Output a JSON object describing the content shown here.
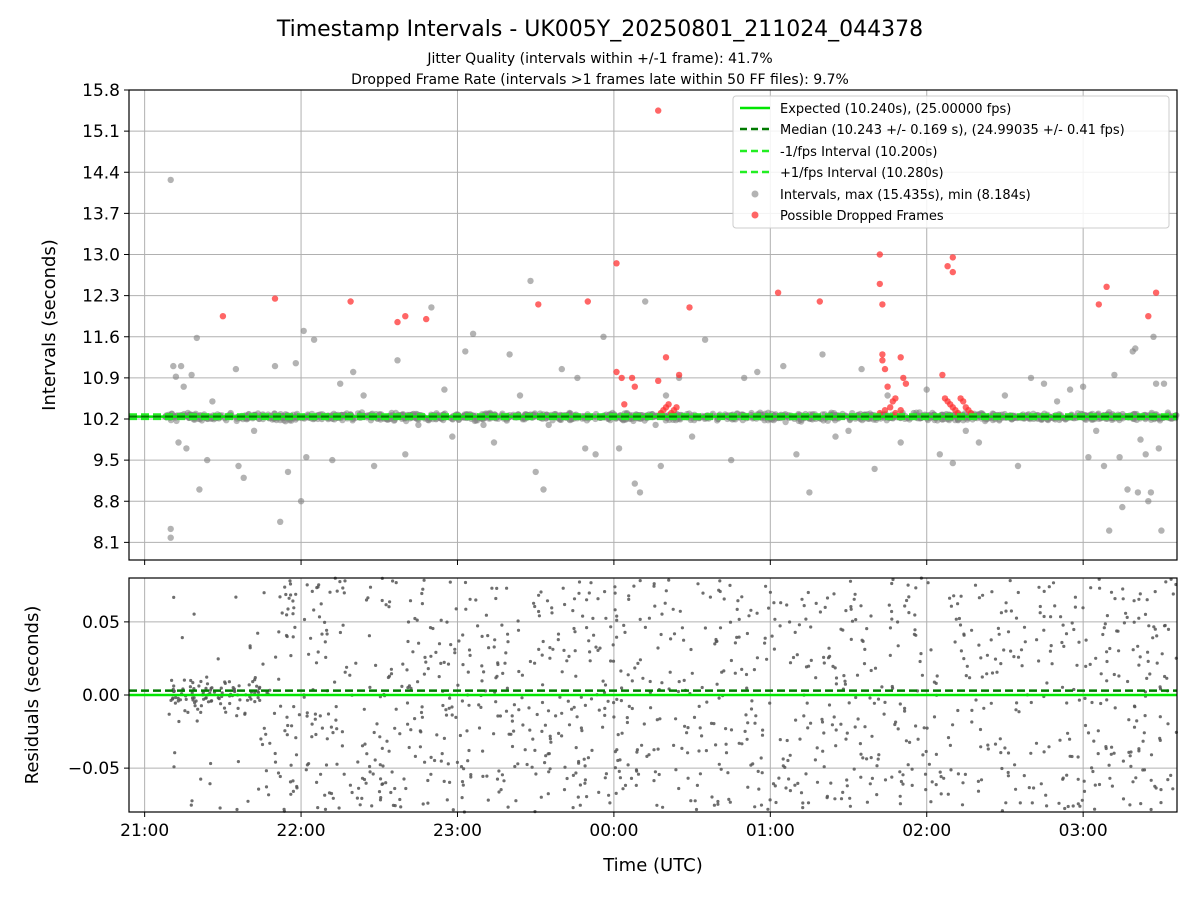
{
  "figure": {
    "title": "Timestamp Intervals - UK005Y_20250801_211024_044378",
    "subtitle_line1": "Jitter Quality (intervals within +/-1 frame): 41.7%",
    "subtitle_line2": "Dropped Frame Rate (intervals >1 frames late within 50 FF files): 9.7%"
  },
  "colors": {
    "expected": "#00e600",
    "median": "#007a00",
    "interval_lines": "#22ee22",
    "intervals_points": "#808080",
    "dropped_points": "#ff3333",
    "residual_points": "#555555",
    "grid": "#b0b0b0"
  },
  "chart_data": [
    {
      "type": "scatter",
      "panel": "intervals",
      "ylabel": "Intervals (seconds)",
      "xlabel": "",
      "x_axis": "time (UTC)",
      "xlim": [
        "20:54",
        "03:36"
      ],
      "ylim": [
        7.8,
        15.8
      ],
      "yticks": [
        8.1,
        8.8,
        9.5,
        10.2,
        10.9,
        11.6,
        12.3,
        13.0,
        13.7,
        14.4,
        15.1,
        15.8
      ],
      "ytick_labels": [
        "8.1",
        "8.8",
        "9.5",
        "10.2",
        "10.9",
        "11.6",
        "12.3",
        "13.0",
        "13.7",
        "14.4",
        "15.1",
        "15.8"
      ],
      "grid": true,
      "legend_position": "top-right",
      "reference_lines": [
        {
          "name": "Expected (10.240s), (25.00000 fps)",
          "y": 10.24,
          "style": "solid",
          "color": "#00e600"
        },
        {
          "name": "Median (10.243 +/- 0.169 s), (24.99035 +/- 0.41 fps)",
          "y": 10.243,
          "style": "dashed",
          "color": "#007a00"
        },
        {
          "name": "-1/fps Interval (10.200s)",
          "y": 10.2,
          "style": "dashed",
          "color": "#22ee22"
        },
        {
          "name": "+1/fps Interval (10.280s)",
          "y": 10.28,
          "style": "dashed",
          "color": "#22ee22"
        }
      ],
      "series": [
        {
          "name": "Intervals, max (15.435s), min (8.184s)",
          "color": "#808080",
          "points": [
            [
              "21:10",
              14.27
            ],
            [
              "21:10",
              8.33
            ],
            [
              "21:10",
              8.18
            ],
            [
              "21:11",
              11.1
            ],
            [
              "21:12",
              10.92
            ],
            [
              "21:13",
              9.8
            ],
            [
              "21:14",
              11.1
            ],
            [
              "21:15",
              10.75
            ],
            [
              "21:16",
              9.7
            ],
            [
              "21:18",
              10.95
            ],
            [
              "21:20",
              11.58
            ],
            [
              "21:21",
              9.0
            ],
            [
              "21:24",
              9.5
            ],
            [
              "21:26",
              10.5
            ],
            [
              "21:33",
              10.3
            ],
            [
              "21:35",
              11.05
            ],
            [
              "21:36",
              9.4
            ],
            [
              "21:38",
              9.2
            ],
            [
              "21:42",
              10.0
            ],
            [
              "21:50",
              11.1
            ],
            [
              "21:52",
              8.45
            ],
            [
              "21:55",
              9.3
            ],
            [
              "21:58",
              11.15
            ],
            [
              "22:00",
              8.8
            ],
            [
              "22:01",
              11.7
            ],
            [
              "22:02",
              9.55
            ],
            [
              "22:05",
              11.55
            ],
            [
              "22:08",
              10.2
            ],
            [
              "22:12",
              9.5
            ],
            [
              "22:15",
              10.8
            ],
            [
              "22:20",
              11.0
            ],
            [
              "22:24",
              10.6
            ],
            [
              "22:28",
              9.4
            ],
            [
              "22:33",
              10.2
            ],
            [
              "22:37",
              11.2
            ],
            [
              "22:40",
              9.6
            ],
            [
              "22:45",
              10.1
            ],
            [
              "22:50",
              12.1
            ],
            [
              "22:55",
              10.7
            ],
            [
              "22:58",
              9.9
            ],
            [
              "23:03",
              11.35
            ],
            [
              "23:06",
              11.65
            ],
            [
              "23:10",
              10.1
            ],
            [
              "23:14",
              9.8
            ],
            [
              "23:20",
              11.3
            ],
            [
              "23:24",
              10.6
            ],
            [
              "23:28",
              12.55
            ],
            [
              "23:30",
              9.3
            ],
            [
              "23:33",
              9.0
            ],
            [
              "23:35",
              10.1
            ],
            [
              "23:40",
              11.05
            ],
            [
              "23:46",
              10.9
            ],
            [
              "23:49",
              9.7
            ],
            [
              "23:53",
              9.6
            ],
            [
              "23:56",
              11.6
            ],
            [
              "00:02",
              9.7
            ],
            [
              "00:05",
              10.3
            ],
            [
              "00:08",
              9.1
            ],
            [
              "00:10",
              8.95
            ],
            [
              "00:12",
              12.2
            ],
            [
              "00:16",
              10.1
            ],
            [
              "00:18",
              9.4
            ],
            [
              "00:20",
              10.6
            ],
            [
              "00:25",
              10.9
            ],
            [
              "00:30",
              9.9
            ],
            [
              "00:35",
              11.55
            ],
            [
              "00:40",
              10.2
            ],
            [
              "00:45",
              9.5
            ],
            [
              "00:50",
              10.9
            ],
            [
              "00:55",
              11.0
            ],
            [
              "01:00",
              10.2
            ],
            [
              "01:05",
              11.1
            ],
            [
              "01:10",
              9.6
            ],
            [
              "01:15",
              8.95
            ],
            [
              "01:20",
              11.3
            ],
            [
              "01:25",
              9.9
            ],
            [
              "01:30",
              10.0
            ],
            [
              "01:35",
              11.05
            ],
            [
              "01:40",
              9.35
            ],
            [
              "01:45",
              10.6
            ],
            [
              "01:50",
              9.8
            ],
            [
              "01:55",
              10.3
            ],
            [
              "02:00",
              10.7
            ],
            [
              "02:05",
              9.6
            ],
            [
              "02:10",
              9.45
            ],
            [
              "02:15",
              10.0
            ],
            [
              "02:20",
              9.8
            ],
            [
              "02:30",
              10.6
            ],
            [
              "02:35",
              9.4
            ],
            [
              "02:40",
              10.9
            ],
            [
              "02:45",
              10.8
            ],
            [
              "02:50",
              10.5
            ],
            [
              "02:55",
              10.7
            ],
            [
              "03:00",
              10.75
            ],
            [
              "03:02",
              9.55
            ],
            [
              "03:05",
              10.0
            ],
            [
              "03:08",
              9.4
            ],
            [
              "03:10",
              8.3
            ],
            [
              "03:12",
              10.95
            ],
            [
              "03:14",
              9.55
            ],
            [
              "03:17",
              9.0
            ],
            [
              "03:19",
              11.35
            ],
            [
              "03:21",
              8.95
            ],
            [
              "03:22",
              9.85
            ],
            [
              "03:25",
              8.8
            ],
            [
              "03:26",
              8.95
            ],
            [
              "03:27",
              11.6
            ],
            [
              "03:28",
              10.8
            ],
            [
              "03:29",
              9.7
            ],
            [
              "03:30",
              8.3
            ],
            [
              "03:31",
              10.8
            ],
            [
              "03:20",
              11.4
            ],
            [
              "03:15",
              8.7
            ],
            [
              "03:24",
              9.6
            ]
          ],
          "band_note_y_center": 10.24
        },
        {
          "name": "Possible Dropped Frames",
          "color": "#ff3333",
          "points": [
            [
              "21:30",
              11.95
            ],
            [
              "21:50",
              12.25
            ],
            [
              "22:19",
              12.2
            ],
            [
              "22:37",
              11.85
            ],
            [
              "22:40",
              11.95
            ],
            [
              "22:48",
              11.9
            ],
            [
              "23:31",
              12.15
            ],
            [
              "23:50",
              12.2
            ],
            [
              "00:01",
              12.85
            ],
            [
              "00:01",
              11.0
            ],
            [
              "00:03",
              10.9
            ],
            [
              "00:04",
              10.45
            ],
            [
              "00:07",
              10.9
            ],
            [
              "00:08",
              10.75
            ],
            [
              "00:17",
              15.45
            ],
            [
              "00:17",
              10.85
            ],
            [
              "00:20",
              11.25
            ],
            [
              "00:25",
              10.95
            ],
            [
              "00:29",
              12.1
            ],
            [
              "00:18",
              10.3
            ],
            [
              "00:19",
              10.35
            ],
            [
              "00:20",
              10.4
            ],
            [
              "00:21",
              10.45
            ],
            [
              "00:22",
              10.3
            ],
            [
              "00:23",
              10.35
            ],
            [
              "00:24",
              10.4
            ],
            [
              "01:03",
              12.35
            ],
            [
              "01:19",
              12.2
            ],
            [
              "01:42",
              13.0
            ],
            [
              "01:42",
              12.5
            ],
            [
              "01:43",
              12.15
            ],
            [
              "01:43",
              11.3
            ],
            [
              "01:43",
              11.2
            ],
            [
              "01:44",
              11.05
            ],
            [
              "01:45",
              10.75
            ],
            [
              "01:47",
              10.5
            ],
            [
              "01:48",
              10.55
            ],
            [
              "01:50",
              11.25
            ],
            [
              "01:51",
              10.9
            ],
            [
              "01:52",
              10.8
            ],
            [
              "01:42",
              10.3
            ],
            [
              "01:44",
              10.35
            ],
            [
              "01:46",
              10.4
            ],
            [
              "01:48",
              10.3
            ],
            [
              "01:50",
              10.35
            ],
            [
              "02:06",
              10.95
            ],
            [
              "02:08",
              12.8
            ],
            [
              "02:10",
              12.7
            ],
            [
              "02:10",
              12.95
            ],
            [
              "02:07",
              10.55
            ],
            [
              "02:08",
              10.5
            ],
            [
              "02:09",
              10.45
            ],
            [
              "02:10",
              10.4
            ],
            [
              "02:11",
              10.35
            ],
            [
              "02:12",
              10.3
            ],
            [
              "02:13",
              10.55
            ],
            [
              "02:14",
              10.5
            ],
            [
              "02:15",
              10.4
            ],
            [
              "02:16",
              10.35
            ],
            [
              "02:17",
              10.3
            ],
            [
              "03:06",
              12.15
            ],
            [
              "03:09",
              12.45
            ],
            [
              "03:25",
              11.95
            ],
            [
              "03:28",
              12.35
            ]
          ]
        }
      ]
    },
    {
      "type": "scatter",
      "panel": "residuals",
      "ylabel": "Residuals (seconds)",
      "xlabel": "Time (UTC)",
      "xlim": [
        "20:54",
        "03:36"
      ],
      "ylim": [
        -0.08,
        0.08
      ],
      "yticks": [
        -0.05,
        0.0,
        0.05
      ],
      "ytick_labels": [
        "−0.05",
        "0.00",
        "0.05"
      ],
      "xticks": [
        "21:00",
        "22:00",
        "23:00",
        "00:00",
        "01:00",
        "02:00",
        "03:00"
      ],
      "grid": true,
      "reference_lines": [
        {
          "y": 0.0,
          "style": "solid",
          "color": "#00e600"
        },
        {
          "y": 0.003,
          "style": "dashed",
          "color": "#007a00"
        }
      ],
      "series": [
        {
          "color": "#555555",
          "value_range": [
            -0.08,
            0.08
          ],
          "dense_cluster_near_zero": [
            "21:10",
            "21:45"
          ]
        }
      ]
    }
  ]
}
